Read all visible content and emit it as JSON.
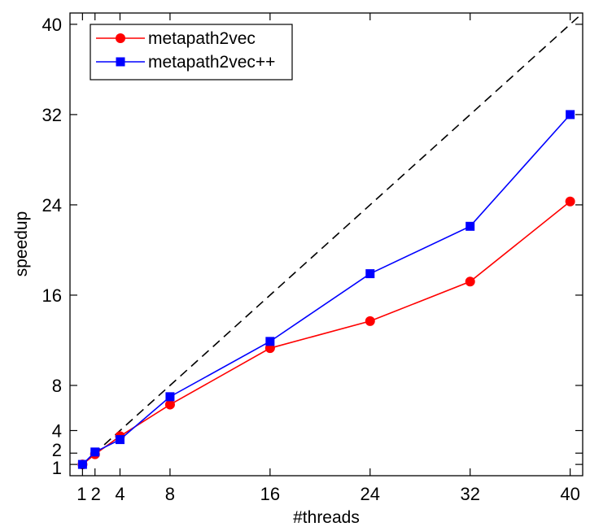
{
  "chart_data": {
    "type": "line",
    "xlabel": "#threads",
    "ylabel": "speedup",
    "xlim": [
      0,
      41
    ],
    "ylim": [
      0,
      41
    ],
    "x_ticks": [
      1,
      2,
      4,
      8,
      16,
      24,
      32,
      40
    ],
    "y_ticks": [
      1,
      2,
      4,
      8,
      16,
      24,
      32,
      40
    ],
    "x_tick_labels": [
      "1",
      "2",
      "4",
      "8",
      "16",
      "24",
      "32",
      "40"
    ],
    "y_tick_labels": [
      "1",
      "2",
      "4",
      "8",
      "16",
      "24",
      "32",
      "40"
    ],
    "x": [
      1,
      2,
      4,
      8,
      16,
      24,
      32,
      40
    ],
    "series": [
      {
        "name": "metapath2vec",
        "color": "#ff0000",
        "marker": "circle",
        "values": [
          1.0,
          1.9,
          3.5,
          6.3,
          11.3,
          13.7,
          17.2,
          24.3
        ]
      },
      {
        "name": "metapath2vec++",
        "color": "#0000ff",
        "marker": "square",
        "values": [
          1.0,
          2.1,
          3.2,
          7.0,
          11.9,
          17.9,
          22.1,
          32.0
        ]
      }
    ],
    "reference_line": {
      "style": "dashed",
      "color": "#000000",
      "from": [
        1,
        1
      ],
      "to": [
        41,
        41
      ]
    },
    "legend_position": "top-left",
    "grid": false,
    "box": true
  }
}
